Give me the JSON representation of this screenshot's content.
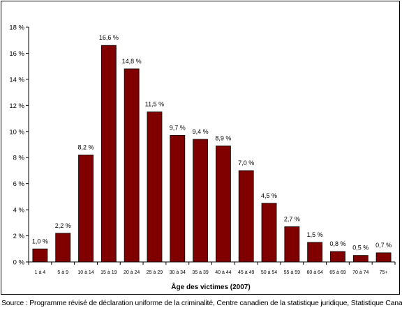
{
  "chart_data": {
    "type": "bar",
    "categories": [
      "1 à 4",
      "5 à 9",
      "10 à 14",
      "15 à 19",
      "20 à 24",
      "25 à 29",
      "30 à 34",
      "35 à 39",
      "40 à 44",
      "45 à 49",
      "50 à 54",
      "55 à 59",
      "60 à 64",
      "65 à 69",
      "70 à 74",
      "75+"
    ],
    "values": [
      1.0,
      2.2,
      8.2,
      16.6,
      14.8,
      11.5,
      9.7,
      9.4,
      8.9,
      7.0,
      4.5,
      2.7,
      1.5,
      0.8,
      0.5,
      0.7
    ],
    "data_labels": [
      "1,0 %",
      "2,2 %",
      "8,2 %",
      "16,6 %",
      "14,8 %",
      "11,5 %",
      "9,7 %",
      "9,4 %",
      "8,9 %",
      "7,0 %",
      "4,5 %",
      "2,7 %",
      "1,5 %",
      "0,8 %",
      "0,5 %",
      "0,7 %"
    ],
    "y_ticks": [
      0,
      2,
      4,
      6,
      8,
      10,
      12,
      14,
      16,
      18
    ],
    "y_tick_labels": [
      "0 %",
      "2 %",
      "4 %",
      "6 %",
      "8 %",
      "10 %",
      "12 %",
      "14 %",
      "16 %",
      "18 %"
    ],
    "ylim": [
      0,
      18
    ],
    "title": "",
    "xlabel": "Âge des victimes (2007)",
    "ylabel": "",
    "grid": false,
    "bar_color": "#800000"
  },
  "source": "Source : Programme révisé de déclaration uniforme de la criminalité, Centre canadien de la statistique juridique, Statistique Canada."
}
